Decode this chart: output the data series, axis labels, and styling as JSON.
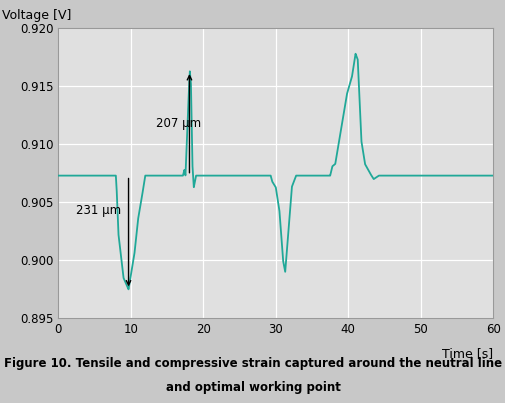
{
  "xlabel": "Time [s]",
  "ylabel": "Voltage [V]",
  "xlim": [
    0,
    60
  ],
  "ylim": [
    0.895,
    0.92
  ],
  "yticks": [
    0.895,
    0.9,
    0.905,
    0.91,
    0.915,
    0.92
  ],
  "xticks": [
    0,
    10,
    20,
    30,
    40,
    50,
    60
  ],
  "line_color": "#20a898",
  "fig_bg_color": "#c8c8c8",
  "plot_bg_color": "#e0e0e0",
  "grid_color": "#ffffff",
  "caption_line1": "Figure 10. Tensile and compressive strain captured around the neutral line",
  "caption_line2": "and optimal working point",
  "annotation1_text": "207 μm",
  "annotation2_text": "231 μm",
  "baseline": 0.9073,
  "peak1_min": 0.8975,
  "peak2_max": 0.9163,
  "peak3_min": 0.899,
  "peak4_max": 0.9178
}
